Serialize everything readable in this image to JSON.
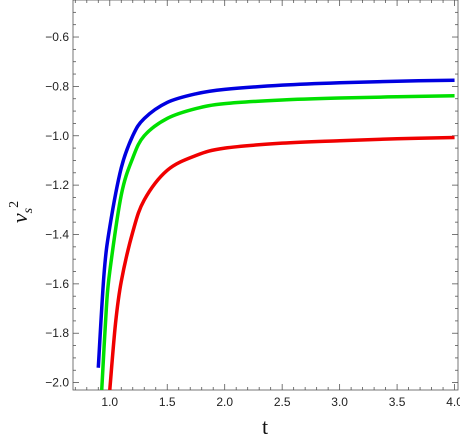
{
  "chart_data": {
    "type": "line",
    "xlabel": "t",
    "ylabel_base": "v",
    "ylabel_sub": "s",
    "ylabel_sup": "2",
    "xlim": [
      0.68,
      4.03
    ],
    "ylim": [
      -2.03,
      -0.45
    ],
    "xticks": [
      1.0,
      1.5,
      2.0,
      2.5,
      3.0,
      3.5,
      4.0
    ],
    "xtick_labels": [
      "1.0",
      "1.5",
      "2.0",
      "2.5",
      "3.0",
      "3.5",
      "4.0"
    ],
    "yticks": [
      -0.6,
      -0.8,
      -1.0,
      -1.2,
      -1.4,
      -1.6,
      -1.8,
      -2.0
    ],
    "ytick_labels": [
      "−0.6",
      "−0.8",
      "−1.0",
      "−1.2",
      "−1.4",
      "−1.6",
      "−1.8",
      "−2.0"
    ],
    "grid": false,
    "series": [
      {
        "color": "#0000e0",
        "x": [
          0.9,
          0.95,
          1.0,
          1.1,
          1.2,
          1.3,
          1.5,
          1.75,
          2.0,
          2.5,
          3.0,
          3.5,
          4.0
        ],
        "y": [
          -1.94,
          -1.56,
          -1.37,
          -1.13,
          -1.0,
          -0.93,
          -0.865,
          -0.83,
          -0.812,
          -0.795,
          -0.785,
          -0.779,
          -0.775
        ]
      },
      {
        "color": "#00e000",
        "x": [
          0.93,
          0.97,
          1.0,
          1.1,
          1.2,
          1.3,
          1.5,
          1.75,
          2.0,
          2.5,
          3.0,
          3.5,
          4.0
        ],
        "y": [
          -2.03,
          -1.7,
          -1.55,
          -1.24,
          -1.09,
          -1.0,
          -0.93,
          -0.89,
          -0.87,
          -0.855,
          -0.847,
          -0.842,
          -0.838
        ]
      },
      {
        "color": "#f00000",
        "x": [
          1.0,
          1.05,
          1.1,
          1.2,
          1.3,
          1.5,
          1.75,
          2.0,
          2.5,
          3.0,
          3.5,
          4.0
        ],
        "y": [
          -2.03,
          -1.76,
          -1.59,
          -1.39,
          -1.26,
          -1.14,
          -1.08,
          -1.05,
          -1.03,
          -1.02,
          -1.012,
          -1.007
        ]
      }
    ]
  }
}
